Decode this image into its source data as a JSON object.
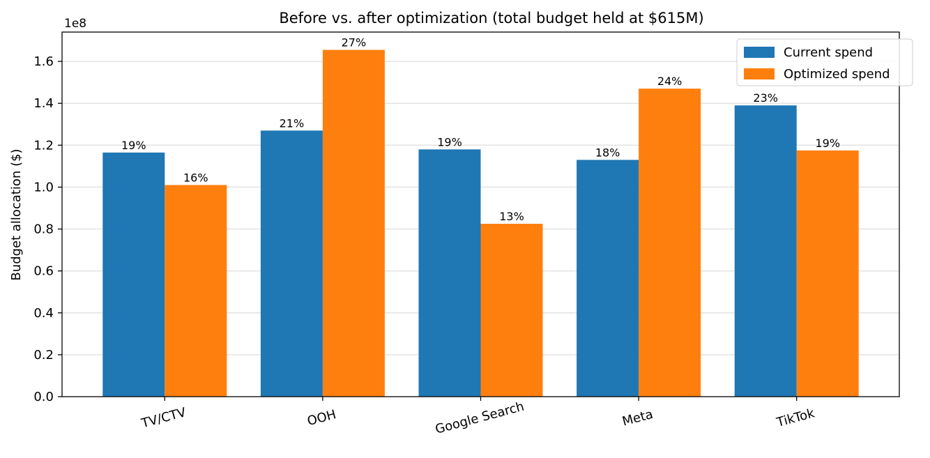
{
  "chart_data": {
    "type": "bar",
    "title": "Before vs. after optimization (total budget held at $615M)",
    "xlabel": "",
    "ylabel": "Budget allocation ($)",
    "y_offset_label": "1e8",
    "ylim": [
      0,
      1.74
    ],
    "y_ticks": [
      "0.0",
      "0.2",
      "0.4",
      "0.6",
      "0.8",
      "1.0",
      "1.2",
      "1.4",
      "1.6"
    ],
    "grid": "horizontal",
    "legend_position": "top-right",
    "categories": [
      "TV/CTV",
      "OOH",
      "Google Search",
      "Meta",
      "TikTok"
    ],
    "series": [
      {
        "name": "Current spend",
        "color": "#1f77b4",
        "values": [
          1.165,
          1.27,
          1.18,
          1.13,
          1.39
        ],
        "labels": [
          "19%",
          "21%",
          "19%",
          "18%",
          "23%"
        ]
      },
      {
        "name": "Optimized spend",
        "color": "#ff7f0e",
        "values": [
          1.01,
          1.655,
          0.825,
          1.47,
          1.175
        ],
        "labels": [
          "16%",
          "27%",
          "13%",
          "24%",
          "19%"
        ]
      }
    ]
  }
}
